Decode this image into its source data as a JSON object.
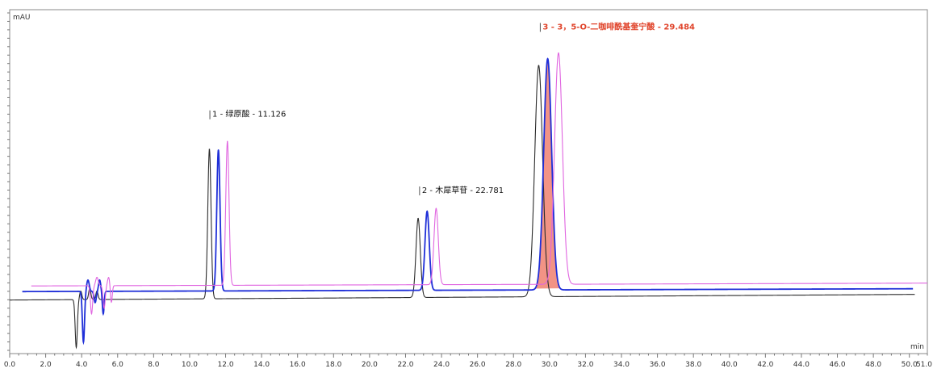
{
  "chart_data": {
    "type": "line",
    "title": "",
    "xlabel": "min",
    "ylabel": "mAU",
    "xlim": [
      0.0,
      51.0
    ],
    "ylim": [
      -22,
      100
    ],
    "grid": false,
    "x_ticks": [
      "0.0",
      "2.0",
      "4.0",
      "6.0",
      "8.0",
      "10.0",
      "12.0",
      "14.0",
      "16.0",
      "18.0",
      "20.0",
      "22.0",
      "24.0",
      "26.0",
      "28.0",
      "30.0",
      "32.0",
      "34.0",
      "36.0",
      "38.0",
      "40.0",
      "42.0",
      "44.0",
      "46.0",
      "48.0",
      "50.0",
      "51.0"
    ],
    "series": [
      {
        "color": "#2b2b2b",
        "baseline": -3,
        "baseline_end": -1,
        "x_start": 0.0,
        "x_end": 50.3,
        "noise": [
          {
            "x": 3.7,
            "w": 0.06,
            "h": -17
          },
          {
            "x": 3.95,
            "w": 0.06,
            "h": 3
          },
          {
            "x": 4.45,
            "w": 0.06,
            "h": 4
          },
          {
            "x": 4.85,
            "w": 0.06,
            "h": 3
          }
        ],
        "peaks": [
          {
            "rt": 11.1,
            "height": 53,
            "width": 0.09
          },
          {
            "rt": 22.7,
            "height": 28,
            "width": 0.12
          },
          {
            "rt": 29.4,
            "height": 82,
            "width": 0.22
          }
        ]
      },
      {
        "color": "#1f2fd8",
        "baseline": 0,
        "baseline_end": 1,
        "x_start": 0.7,
        "x_end": 50.2,
        "noise": [
          {
            "x": 4.1,
            "w": 0.06,
            "h": -18
          },
          {
            "x": 4.35,
            "w": 0.07,
            "h": 4
          },
          {
            "x": 4.75,
            "w": 0.06,
            "h": -4
          },
          {
            "x": 5.0,
            "w": 0.06,
            "h": 4
          },
          {
            "x": 5.2,
            "w": 0.05,
            "h": -8
          }
        ],
        "peaks": [
          {
            "rt": 11.6,
            "height": 50,
            "width": 0.09
          },
          {
            "rt": 23.2,
            "height": 28,
            "width": 0.12
          },
          {
            "rt": 29.9,
            "height": 82,
            "width": 0.22
          }
        ]
      },
      {
        "color": "#e065e0",
        "baseline": 2,
        "baseline_end": 3,
        "x_start": 1.2,
        "x_end": 51.0,
        "noise": [
          {
            "x": 4.55,
            "w": 0.06,
            "h": -10
          },
          {
            "x": 4.85,
            "w": 0.07,
            "h": 3
          },
          {
            "x": 5.25,
            "w": 0.06,
            "h": -8
          },
          {
            "x": 5.5,
            "w": 0.06,
            "h": 3
          },
          {
            "x": 5.65,
            "w": 0.05,
            "h": -6
          }
        ],
        "peaks": [
          {
            "rt": 12.1,
            "height": 51,
            "width": 0.09
          },
          {
            "rt": 23.7,
            "height": 27,
            "width": 0.12
          },
          {
            "rt": 30.5,
            "height": 82,
            "width": 0.22
          }
        ]
      }
    ],
    "shaded_peak": {
      "series_index": 1,
      "rt": 29.9,
      "color": "#f08070"
    },
    "annotations": [
      {
        "text": "1 - 绿原酸 - 11.126",
        "rt": 11.126,
        "y": 62,
        "highlight": false
      },
      {
        "text": "2 - 木犀草苷 - 22.781",
        "rt": 22.781,
        "y": 35,
        "highlight": false
      },
      {
        "text": "3 - 3，5-O-二咖啡酰基奎宁酸 - 29.484",
        "rt": 29.484,
        "y": 93,
        "highlight": true
      }
    ]
  }
}
